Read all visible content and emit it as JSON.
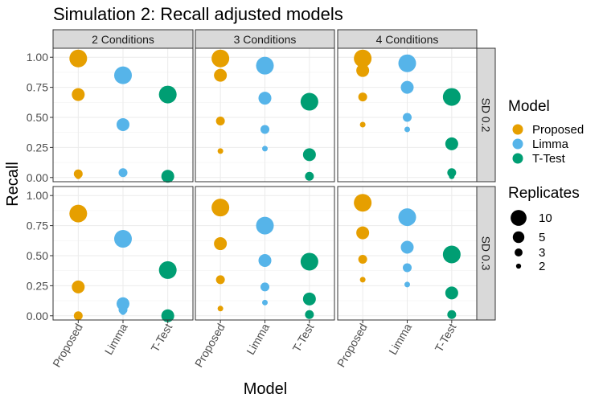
{
  "chart_data": {
    "type": "scatter",
    "title": "Simulation 2: Recall adjusted models",
    "xlabel": "Model",
    "ylabel": "Recall",
    "categories": [
      "Proposed",
      "Limma",
      "T-Test"
    ],
    "ylim": [
      -0.035,
      1.075
    ],
    "yticks": [
      0,
      0.25,
      0.5,
      0.75,
      1
    ],
    "ytick_labels": [
      "0.00",
      "0.25",
      "0.50",
      "0.75",
      "1.00"
    ],
    "grid": true,
    "col_facets": [
      "2 Conditions",
      "3 Conditions",
      "4 Conditions"
    ],
    "row_facets": [
      "SD 0.2",
      "SD 0.3"
    ],
    "colors": {
      "Proposed": "#E69F00",
      "Limma": "#56B4E9",
      "T-Test": "#009E73"
    },
    "legend": {
      "placement": "right",
      "color_title": "Model",
      "color_items": [
        "Proposed",
        "Limma",
        "T-Test"
      ],
      "size_title": "Replicates",
      "size_items": [
        "10",
        "5",
        "3",
        "2"
      ]
    },
    "size_levels": [
      10,
      5,
      3,
      2
    ],
    "series": [
      {
        "name": "Proposed",
        "panels": [
          {
            "row": 0,
            "col": 0,
            "points": [
              [
                10,
                0.99
              ],
              [
                5,
                0.69
              ],
              [
                3,
                0.03
              ],
              [
                2,
                0.01
              ]
            ]
          },
          {
            "row": 0,
            "col": 1,
            "points": [
              [
                10,
                0.99
              ],
              [
                5,
                0.85
              ],
              [
                3,
                0.47
              ],
              [
                2,
                0.22
              ]
            ]
          },
          {
            "row": 0,
            "col": 2,
            "points": [
              [
                10,
                0.99
              ],
              [
                5,
                0.89
              ],
              [
                3,
                0.67
              ],
              [
                2,
                0.44
              ]
            ]
          },
          {
            "row": 1,
            "col": 0,
            "points": [
              [
                10,
                0.85
              ],
              [
                5,
                0.24
              ],
              [
                3,
                0.0
              ]
            ]
          },
          {
            "row": 1,
            "col": 1,
            "points": [
              [
                10,
                0.9
              ],
              [
                5,
                0.6
              ],
              [
                3,
                0.3
              ],
              [
                2,
                0.06
              ]
            ]
          },
          {
            "row": 1,
            "col": 2,
            "points": [
              [
                10,
                0.94
              ],
              [
                5,
                0.69
              ],
              [
                3,
                0.47
              ],
              [
                2,
                0.3
              ]
            ]
          }
        ]
      },
      {
        "name": "Limma",
        "panels": [
          {
            "row": 0,
            "col": 0,
            "points": [
              [
                10,
                0.85
              ],
              [
                5,
                0.44
              ],
              [
                3,
                0.04
              ]
            ]
          },
          {
            "row": 0,
            "col": 1,
            "points": [
              [
                10,
                0.93
              ],
              [
                5,
                0.66
              ],
              [
                3,
                0.4
              ],
              [
                2,
                0.24
              ]
            ]
          },
          {
            "row": 0,
            "col": 2,
            "points": [
              [
                10,
                0.95
              ],
              [
                5,
                0.75
              ],
              [
                3,
                0.5
              ],
              [
                2,
                0.4
              ]
            ]
          },
          {
            "row": 1,
            "col": 0,
            "points": [
              [
                10,
                0.64
              ],
              [
                5,
                0.1
              ],
              [
                3,
                0.05
              ],
              [
                2,
                0.03
              ]
            ]
          },
          {
            "row": 1,
            "col": 1,
            "points": [
              [
                10,
                0.75
              ],
              [
                5,
                0.46
              ],
              [
                3,
                0.24
              ],
              [
                2,
                0.11
              ]
            ]
          },
          {
            "row": 1,
            "col": 2,
            "points": [
              [
                10,
                0.82
              ],
              [
                5,
                0.57
              ],
              [
                3,
                0.4
              ],
              [
                2,
                0.26
              ]
            ]
          }
        ]
      },
      {
        "name": "T-Test",
        "panels": [
          {
            "row": 0,
            "col": 0,
            "points": [
              [
                10,
                0.69
              ],
              [
                5,
                0.01
              ],
              [
                3,
                0.0
              ]
            ]
          },
          {
            "row": 0,
            "col": 1,
            "points": [
              [
                10,
                0.63
              ],
              [
                5,
                0.19
              ],
              [
                3,
                0.01
              ]
            ]
          },
          {
            "row": 0,
            "col": 2,
            "points": [
              [
                10,
                0.67
              ],
              [
                5,
                0.28
              ],
              [
                3,
                0.04
              ],
              [
                2,
                0.01
              ]
            ]
          },
          {
            "row": 1,
            "col": 0,
            "points": [
              [
                10,
                0.38
              ],
              [
                5,
                0.0
              ],
              [
                3,
                0.0
              ]
            ]
          },
          {
            "row": 1,
            "col": 1,
            "points": [
              [
                10,
                0.45
              ],
              [
                5,
                0.14
              ],
              [
                3,
                0.01
              ]
            ]
          },
          {
            "row": 1,
            "col": 2,
            "points": [
              [
                10,
                0.51
              ],
              [
                5,
                0.19
              ],
              [
                3,
                0.01
              ]
            ]
          }
        ]
      }
    ]
  }
}
